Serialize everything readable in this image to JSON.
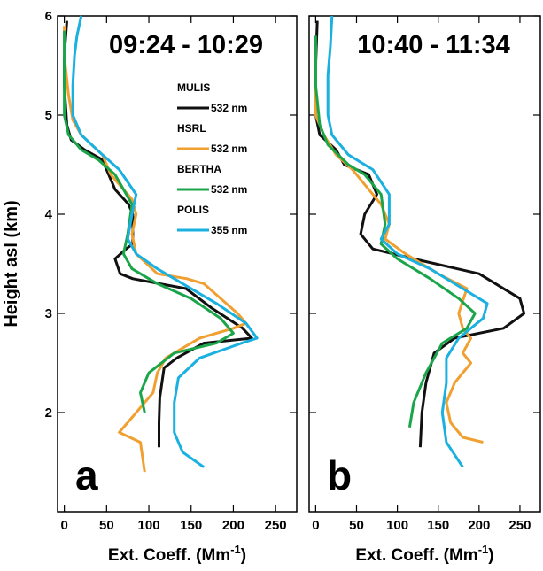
{
  "chart_data": [
    {
      "type": "line",
      "title": "09:24 - 10:29",
      "panel_label": "a",
      "ylabel": "Height asl (km)",
      "xlabel": {
        "text": "Ext. Coeff. (Mm",
        "sup": "-1",
        "suffix": ")"
      },
      "xlim": [
        -8,
        275
      ],
      "ylim": [
        1.0,
        6.0
      ],
      "xticks": [
        0,
        50,
        100,
        150,
        200,
        250
      ],
      "yticks": [
        2,
        3,
        4,
        5,
        6
      ],
      "show_ytick_labels": true,
      "series": [
        {
          "name": "MULIS",
          "wavelength": "532 nm",
          "color": "#111111",
          "x": [
            112,
            112,
            113,
            118,
            133,
            165,
            222,
            211,
            175,
            144,
            81,
            66,
            60,
            73,
            81,
            81,
            76,
            60,
            50,
            45,
            24,
            8,
            3,
            0,
            0,
            3
          ],
          "y": [
            1.65,
            1.9,
            2.15,
            2.45,
            2.55,
            2.7,
            2.75,
            2.85,
            3.05,
            3.25,
            3.35,
            3.4,
            3.55,
            3.65,
            3.7,
            4.0,
            4.1,
            4.25,
            4.45,
            4.55,
            4.65,
            4.75,
            4.9,
            5.3,
            5.6,
            5.95
          ]
        },
        {
          "name": "HSRL",
          "wavelength": "532 nm",
          "color": "#f0a030",
          "x": [
            95,
            90,
            65,
            80,
            90,
            105,
            110,
            120,
            140,
            160,
            200,
            215,
            205,
            165,
            145,
            110,
            85,
            80,
            85,
            80,
            55,
            45,
            20,
            10,
            5,
            0,
            0
          ],
          "y": [
            1.4,
            1.7,
            1.8,
            1.95,
            2.05,
            2.2,
            2.4,
            2.55,
            2.65,
            2.75,
            2.85,
            2.9,
            3.0,
            3.3,
            3.35,
            3.4,
            3.6,
            3.8,
            4.0,
            4.15,
            4.4,
            4.6,
            4.8,
            4.95,
            5.2,
            5.6,
            5.9
          ]
        },
        {
          "name": "BERTHA",
          "wavelength": "532 nm",
          "color": "#1aa54a",
          "x": [
            95,
            90,
            100,
            130,
            180,
            200,
            185,
            150,
            110,
            80,
            70,
            75,
            80,
            60,
            40,
            20,
            5,
            0,
            0,
            0
          ],
          "y": [
            2.0,
            2.2,
            2.4,
            2.6,
            2.7,
            2.8,
            2.95,
            3.15,
            3.3,
            3.45,
            3.6,
            3.8,
            4.1,
            4.4,
            4.55,
            4.65,
            4.8,
            5.0,
            5.5,
            5.85
          ]
        },
        {
          "name": "POLIS",
          "wavelength": "355 nm",
          "color": "#1ab0e0",
          "x": [
            165,
            140,
            130,
            130,
            135,
            160,
            210,
            228,
            215,
            180,
            140,
            110,
            85,
            75,
            80,
            85,
            65,
            45,
            20,
            10,
            10,
            12,
            15,
            20
          ],
          "y": [
            1.45,
            1.6,
            1.8,
            2.1,
            2.35,
            2.55,
            2.7,
            2.75,
            2.9,
            3.1,
            3.3,
            3.45,
            3.6,
            3.75,
            4.0,
            4.2,
            4.45,
            4.6,
            4.8,
            5.0,
            5.3,
            5.6,
            5.8,
            6.0
          ]
        }
      ]
    },
    {
      "type": "line",
      "title": "10:40 - 11:34",
      "panel_label": "b",
      "xlabel": {
        "text": "Ext. Coeff. (Mm",
        "sup": "-1",
        "suffix": ")"
      },
      "xlim": [
        -8,
        275
      ],
      "ylim": [
        1.0,
        6.0
      ],
      "xticks": [
        0,
        50,
        100,
        150,
        200,
        250
      ],
      "yticks": [
        2,
        3,
        4,
        5,
        6
      ],
      "show_ytick_labels": false,
      "series": [
        {
          "color": "#111111",
          "x": [
            128,
            130,
            135,
            145,
            170,
            230,
            255,
            250,
            200,
            120,
            70,
            55,
            60,
            75,
            65,
            35,
            25,
            5,
            0,
            0,
            2
          ],
          "y": [
            1.65,
            2.0,
            2.3,
            2.6,
            2.75,
            2.85,
            3.0,
            3.15,
            3.4,
            3.55,
            3.65,
            3.8,
            4.0,
            4.2,
            4.4,
            4.5,
            4.65,
            4.8,
            5.0,
            5.5,
            5.95
          ]
        },
        {
          "color": "#f0a030",
          "x": [
            205,
            180,
            165,
            160,
            165,
            170,
            190,
            180,
            190,
            180,
            175,
            185,
            150,
            110,
            85,
            90,
            80,
            60,
            45,
            25,
            10,
            0,
            0
          ],
          "y": [
            1.7,
            1.75,
            1.9,
            2.1,
            2.2,
            2.3,
            2.5,
            2.6,
            2.75,
            2.85,
            3.0,
            3.25,
            3.4,
            3.6,
            3.75,
            3.9,
            4.1,
            4.3,
            4.45,
            4.6,
            4.8,
            5.0,
            5.7
          ]
        },
        {
          "color": "#1aa54a",
          "x": [
            115,
            120,
            135,
            155,
            185,
            195,
            175,
            140,
            100,
            80,
            85,
            80,
            60,
            40,
            15,
            5,
            0,
            0
          ],
          "y": [
            1.85,
            2.1,
            2.4,
            2.7,
            2.85,
            3.0,
            3.15,
            3.35,
            3.55,
            3.7,
            3.9,
            4.2,
            4.4,
            4.5,
            4.7,
            4.9,
            5.3,
            5.8
          ]
        },
        {
          "color": "#1ab0e0",
          "x": [
            180,
            160,
            155,
            160,
            160,
            175,
            205,
            210,
            180,
            140,
            100,
            80,
            90,
            90,
            70,
            40,
            20,
            15,
            15,
            18,
            20
          ],
          "y": [
            1.45,
            1.7,
            2.0,
            2.3,
            2.55,
            2.75,
            2.95,
            3.1,
            3.25,
            3.45,
            3.6,
            3.75,
            3.9,
            4.2,
            4.45,
            4.6,
            4.8,
            5.0,
            5.4,
            5.7,
            6.0
          ]
        }
      ]
    }
  ]
}
